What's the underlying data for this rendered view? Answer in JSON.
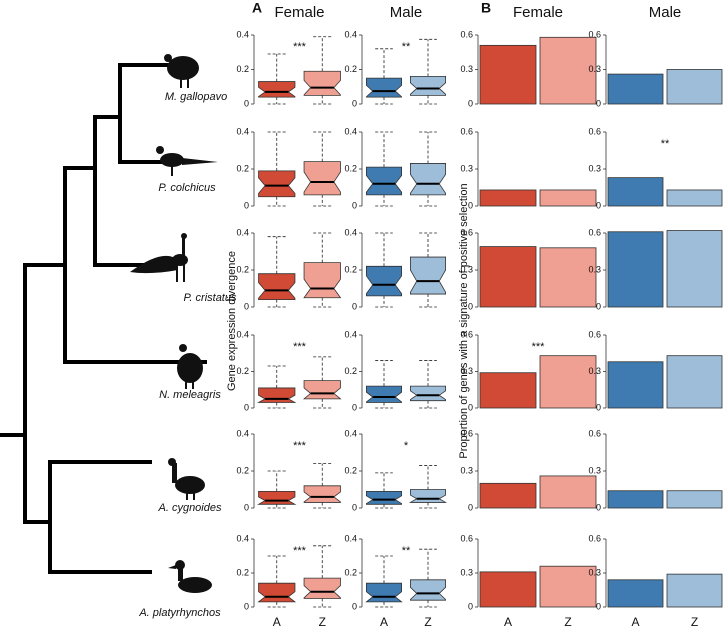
{
  "tree": {
    "leaves": [
      "M. gallopavo",
      "P. colchicus",
      "P. cristatus",
      "N. meleagris",
      "A. cygnoides",
      "A. platyrhynchos"
    ]
  },
  "chart_data": [
    {
      "type": "boxplot",
      "title": "A",
      "ylabel": "Gene expression divergence",
      "columns": [
        "Female",
        "Male"
      ],
      "categories": [
        "A",
        "Z"
      ],
      "colors": [
        [
          "#d04a35",
          "#f0a093"
        ],
        [
          "#3f7bb0",
          "#9dbdd8"
        ]
      ],
      "ylim": [
        0,
        0.4
      ],
      "yticks": [
        0,
        0.2,
        0.4
      ],
      "rows": [
        {
          "panels": [
            {
              "boxes": [
                {
                  "min": 0,
                  "q1": 0.04,
                  "median": 0.07,
                  "q3": 0.13,
                  "max": 0.29
                },
                {
                  "min": 0,
                  "q1": 0.05,
                  "median": 0.095,
                  "q3": 0.19,
                  "max": 0.39
                }
              ],
              "annotation": "***"
            },
            {
              "boxes": [
                {
                  "min": 0,
                  "q1": 0.04,
                  "median": 0.075,
                  "q3": 0.15,
                  "max": 0.32
                },
                {
                  "min": 0,
                  "q1": 0.05,
                  "median": 0.09,
                  "q3": 0.16,
                  "max": 0.375
                }
              ],
              "annotation": "**"
            }
          ]
        },
        {
          "panels": [
            {
              "boxes": [
                {
                  "min": 0,
                  "q1": 0.05,
                  "median": 0.11,
                  "q3": 0.19,
                  "max": 0.4
                },
                {
                  "min": 0,
                  "q1": 0.06,
                  "median": 0.13,
                  "q3": 0.24,
                  "max": 0.4
                }
              ]
            },
            {
              "boxes": [
                {
                  "min": 0,
                  "q1": 0.06,
                  "median": 0.12,
                  "q3": 0.21,
                  "max": 0.4
                },
                {
                  "min": 0,
                  "q1": 0.06,
                  "median": 0.12,
                  "q3": 0.23,
                  "max": 0.4
                }
              ]
            }
          ]
        },
        {
          "panels": [
            {
              "boxes": [
                {
                  "min": 0,
                  "q1": 0.04,
                  "median": 0.09,
                  "q3": 0.18,
                  "max": 0.38
                },
                {
                  "min": 0,
                  "q1": 0.05,
                  "median": 0.1,
                  "q3": 0.24,
                  "max": 0.4
                }
              ]
            },
            {
              "boxes": [
                {
                  "min": 0,
                  "q1": 0.06,
                  "median": 0.12,
                  "q3": 0.22,
                  "max": 0.4
                },
                {
                  "min": 0,
                  "q1": 0.07,
                  "median": 0.14,
                  "q3": 0.27,
                  "max": 0.4
                }
              ]
            }
          ]
        },
        {
          "panels": [
            {
              "boxes": [
                {
                  "min": 0,
                  "q1": 0.03,
                  "median": 0.05,
                  "q3": 0.11,
                  "max": 0.23
                },
                {
                  "min": 0,
                  "q1": 0.05,
                  "median": 0.08,
                  "q3": 0.15,
                  "max": 0.28
                }
              ],
              "annotation": "***"
            },
            {
              "boxes": [
                {
                  "min": 0,
                  "q1": 0.03,
                  "median": 0.06,
                  "q3": 0.12,
                  "max": 0.26
                },
                {
                  "min": 0,
                  "q1": 0.04,
                  "median": 0.07,
                  "q3": 0.12,
                  "max": 0.26
                }
              ]
            }
          ]
        },
        {
          "panels": [
            {
              "boxes": [
                {
                  "min": 0,
                  "q1": 0.02,
                  "median": 0.04,
                  "q3": 0.09,
                  "max": 0.2
                },
                {
                  "min": 0,
                  "q1": 0.03,
                  "median": 0.06,
                  "q3": 0.12,
                  "max": 0.24
                }
              ],
              "annotation": "***"
            },
            {
              "boxes": [
                {
                  "min": 0,
                  "q1": 0.02,
                  "median": 0.045,
                  "q3": 0.09,
                  "max": 0.19
                },
                {
                  "min": 0,
                  "q1": 0.03,
                  "median": 0.05,
                  "q3": 0.1,
                  "max": 0.23
                }
              ],
              "annotation": "*"
            }
          ]
        },
        {
          "panels": [
            {
              "boxes": [
                {
                  "min": 0,
                  "q1": 0.03,
                  "median": 0.06,
                  "q3": 0.14,
                  "max": 0.3
                },
                {
                  "min": 0,
                  "q1": 0.05,
                  "median": 0.09,
                  "q3": 0.17,
                  "max": 0.36
                }
              ],
              "annotation": "***"
            },
            {
              "boxes": [
                {
                  "min": 0,
                  "q1": 0.03,
                  "median": 0.06,
                  "q3": 0.14,
                  "max": 0.3
                },
                {
                  "min": 0,
                  "q1": 0.04,
                  "median": 0.08,
                  "q3": 0.16,
                  "max": 0.34
                }
              ],
              "annotation": "**"
            }
          ]
        }
      ]
    },
    {
      "type": "bar",
      "title": "B",
      "ylabel": "Proportion of genes with a signature of positive selection",
      "columns": [
        "Female",
        "Male"
      ],
      "categories": [
        "A",
        "Z"
      ],
      "colors": [
        [
          "#d04a35",
          "#f0a093"
        ],
        [
          "#3f7bb0",
          "#9dbdd8"
        ]
      ],
      "ylim": [
        0,
        0.6
      ],
      "yticks": [
        0,
        0.3,
        0.6
      ],
      "rows": [
        {
          "panels": [
            {
              "values": [
                0.51,
                0.58
              ]
            },
            {
              "values": [
                0.26,
                0.3
              ]
            }
          ]
        },
        {
          "panels": [
            {
              "values": [
                0.13,
                0.13
              ]
            },
            {
              "values": [
                0.23,
                0.13
              ],
              "annotation": "**"
            }
          ]
        },
        {
          "panels": [
            {
              "values": [
                0.49,
                0.48
              ]
            },
            {
              "values": [
                0.61,
                0.62
              ]
            }
          ]
        },
        {
          "panels": [
            {
              "values": [
                0.29,
                0.43
              ],
              "annotation": "***"
            },
            {
              "values": [
                0.38,
                0.43
              ]
            }
          ]
        },
        {
          "panels": [
            {
              "values": [
                0.2,
                0.26
              ]
            },
            {
              "values": [
                0.14,
                0.14
              ]
            }
          ]
        },
        {
          "panels": [
            {
              "values": [
                0.31,
                0.36
              ]
            },
            {
              "values": [
                0.24,
                0.29
              ]
            }
          ]
        }
      ]
    }
  ]
}
